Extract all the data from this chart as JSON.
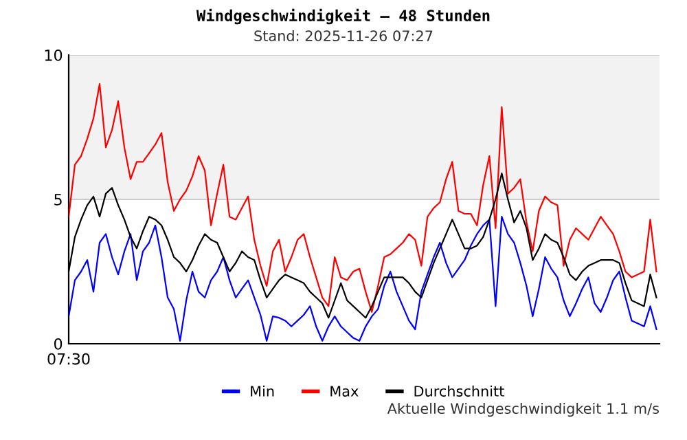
{
  "chart_data": {
    "type": "line",
    "title": "Windgeschwindigkeit – 48 Stunden",
    "subtitle": "Stand: 2025-11-26 07:27",
    "annotations": [
      "07:30",
      "Aktuelle Windgeschwindigkeit 1.1 m/s"
    ],
    "categories": [
      null,
      null,
      null,
      null,
      null,
      null,
      null,
      null,
      null,
      null,
      null,
      null,
      null,
      null,
      null,
      null,
      null,
      null,
      null,
      null,
      null,
      null,
      null,
      null,
      null,
      null,
      null,
      null,
      null,
      null,
      null,
      null,
      null,
      null,
      null,
      null,
      null,
      null,
      null,
      null,
      null,
      null,
      null,
      null,
      null,
      null,
      null,
      null,
      null,
      null,
      null,
      null,
      null,
      null,
      null,
      null,
      null,
      null,
      null,
      null,
      null,
      null,
      null,
      null,
      null,
      null,
      null,
      null,
      null,
      null,
      null,
      null,
      null,
      null,
      null,
      null,
      null,
      null,
      null,
      null,
      null,
      null,
      null,
      null,
      null,
      null,
      null,
      null,
      null,
      null,
      null,
      null,
      null,
      null,
      null,
      null
    ],
    "ylim": [
      0,
      10
    ],
    "yticks": [
      0,
      5,
      10
    ],
    "tick_labels": "y",
    "grid": "y",
    "legend": "bottom",
    "marker": "none",
    "line_style": "solid",
    "bands": [
      {
        "axis": "y",
        "from": 5,
        "to": 10,
        "color": "#f2f2f2"
      }
    ],
    "series": [
      {
        "name": "Min",
        "color": "#0000ff",
        "values": [
          0.95,
          2.2,
          2.5,
          2.9,
          1.8,
          3.5,
          3.8,
          3.0,
          2.4,
          3.2,
          3.8,
          2.2,
          3.2,
          3.5,
          4.1,
          3.0,
          1.6,
          1.2,
          0.1,
          1.5,
          2.5,
          1.8,
          1.6,
          2.2,
          2.5,
          3.0,
          2.2,
          1.6,
          1.9,
          2.2,
          1.6,
          1.0,
          0.1,
          0.95,
          0.9,
          0.8,
          0.6,
          0.8,
          1.0,
          1.3,
          0.6,
          0.1,
          0.6,
          0.95,
          0.6,
          0.4,
          0.2,
          0.1,
          0.6,
          0.95,
          1.2,
          2.0,
          2.5,
          1.8,
          1.3,
          0.8,
          0.5,
          1.8,
          2.4,
          3.0,
          3.5,
          2.8,
          2.3,
          2.6,
          2.9,
          3.4,
          3.8,
          4.1,
          4.3,
          1.3,
          4.4,
          3.8,
          3.5,
          2.8,
          2.0,
          0.95,
          1.9,
          3.0,
          2.6,
          2.3,
          1.5,
          0.95,
          1.4,
          1.9,
          2.3,
          1.4,
          1.1,
          1.6,
          2.2,
          2.5,
          1.6,
          0.8,
          0.7,
          0.6,
          1.3,
          0.5
        ]
      },
      {
        "name": "Max",
        "color": "#ff0000",
        "values": [
          4.4,
          6.2,
          6.5,
          7.1,
          7.8,
          9.0,
          6.8,
          7.4,
          8.4,
          6.8,
          5.7,
          6.3,
          6.3,
          6.6,
          6.9,
          7.3,
          5.6,
          4.6,
          5.0,
          5.3,
          5.8,
          6.5,
          6.0,
          4.1,
          5.2,
          6.2,
          4.4,
          4.3,
          4.7,
          5.1,
          3.6,
          2.7,
          2.0,
          3.2,
          3.6,
          2.5,
          3.0,
          3.6,
          3.8,
          3.0,
          2.3,
          1.6,
          1.3,
          3.0,
          2.3,
          2.2,
          2.5,
          2.6,
          1.8,
          1.1,
          2.0,
          3.0,
          3.1,
          3.3,
          3.5,
          3.8,
          3.6,
          2.7,
          4.4,
          4.7,
          4.9,
          5.7,
          6.3,
          4.6,
          4.5,
          4.5,
          4.1,
          5.5,
          6.5,
          4.0,
          8.2,
          5.2,
          5.4,
          5.7,
          4.2,
          3.2,
          4.6,
          5.1,
          4.9,
          4.8,
          2.7,
          3.6,
          4.0,
          3.8,
          3.6,
          4.0,
          4.4,
          4.1,
          3.8,
          3.2,
          2.5,
          2.3,
          2.4,
          2.5,
          4.3,
          2.5
        ]
      },
      {
        "name": "Durchschnitt",
        "color": "#000000",
        "values": [
          2.5,
          3.7,
          4.3,
          4.8,
          5.1,
          4.4,
          5.2,
          5.4,
          4.8,
          4.3,
          3.7,
          3.3,
          3.9,
          4.4,
          4.3,
          4.1,
          3.6,
          3.0,
          2.8,
          2.5,
          2.9,
          3.4,
          3.8,
          3.6,
          3.5,
          3.0,
          2.5,
          2.8,
          3.2,
          3.0,
          2.9,
          2.2,
          1.6,
          1.9,
          2.2,
          2.4,
          2.3,
          2.2,
          2.1,
          1.8,
          1.6,
          1.4,
          0.9,
          1.5,
          2.1,
          1.5,
          1.3,
          1.1,
          0.9,
          1.3,
          1.8,
          2.3,
          2.3,
          2.3,
          2.3,
          2.1,
          1.8,
          1.6,
          2.2,
          2.8,
          3.3,
          3.8,
          4.3,
          3.8,
          3.3,
          3.3,
          3.4,
          3.7,
          4.3,
          5.0,
          5.9,
          5.0,
          4.2,
          4.6,
          4.0,
          2.9,
          3.3,
          3.8,
          3.6,
          3.5,
          3.0,
          2.4,
          2.2,
          2.5,
          2.7,
          2.8,
          2.9,
          2.9,
          2.9,
          2.8,
          2.1,
          1.5,
          1.4,
          1.3,
          2.4,
          1.6
        ]
      }
    ]
  }
}
